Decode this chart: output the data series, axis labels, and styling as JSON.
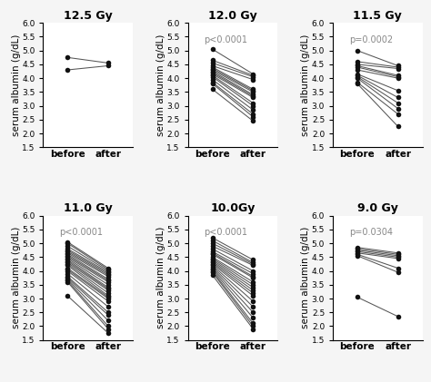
{
  "panels": [
    {
      "title": "12.5 Gy",
      "pvalue": null,
      "before": [
        4.75,
        4.3
      ],
      "after": [
        4.55,
        4.45
      ]
    },
    {
      "title": "12.0 Gy",
      "pvalue": "p<0.0001",
      "before": [
        5.05,
        4.65,
        4.55,
        4.45,
        4.4,
        4.35,
        4.3,
        4.25,
        4.2,
        4.15,
        4.1,
        4.05,
        3.95,
        3.85,
        3.8,
        3.6
      ],
      "after": [
        4.15,
        4.1,
        4.05,
        3.95,
        3.6,
        3.55,
        3.5,
        3.4,
        3.35,
        3.3,
        3.1,
        3.0,
        2.85,
        2.7,
        2.6,
        2.45
      ]
    },
    {
      "title": "11.5 Gy",
      "pvalue": "p=0.0002",
      "before": [
        5.0,
        4.6,
        4.5,
        4.45,
        4.4,
        4.3,
        4.15,
        4.1,
        4.05,
        4.0,
        3.85,
        3.8
      ],
      "after": [
        4.45,
        4.4,
        4.35,
        4.1,
        4.05,
        4.0,
        3.55,
        3.3,
        3.1,
        2.9,
        2.7,
        2.25
      ]
    },
    {
      "title": "11.0 Gy",
      "pvalue": "p<0.0001",
      "before": [
        5.05,
        5.0,
        4.9,
        4.8,
        4.75,
        4.7,
        4.65,
        4.6,
        4.55,
        4.5,
        4.45,
        4.4,
        4.35,
        4.3,
        4.25,
        4.2,
        4.1,
        4.05,
        4.0,
        3.9,
        3.8,
        3.75,
        3.7,
        3.65,
        3.6,
        3.1
      ],
      "after": [
        4.1,
        4.05,
        4.0,
        3.95,
        3.9,
        3.85,
        3.8,
        3.7,
        3.65,
        3.6,
        3.5,
        3.4,
        3.35,
        3.3,
        3.2,
        3.1,
        3.05,
        3.0,
        2.9,
        2.7,
        2.5,
        2.4,
        2.2,
        2.0,
        1.9,
        1.75
      ]
    },
    {
      "title": "10.0Gy",
      "pvalue": "p<0.0001",
      "before": [
        5.2,
        5.1,
        5.0,
        4.9,
        4.8,
        4.7,
        4.65,
        4.6,
        4.5,
        4.45,
        4.4,
        4.35,
        4.3,
        4.25,
        4.2,
        4.15,
        4.1,
        4.05,
        4.0,
        3.95,
        3.85
      ],
      "after": [
        4.4,
        4.3,
        4.25,
        4.2,
        4.0,
        3.9,
        3.8,
        3.75,
        3.6,
        3.5,
        3.4,
        3.3,
        3.2,
        3.1,
        2.9,
        2.7,
        2.5,
        2.3,
        2.1,
        2.0,
        1.9
      ]
    },
    {
      "title": "9.0 Gy",
      "pvalue": "p=0.0304",
      "before": [
        4.85,
        4.8,
        4.75,
        4.7,
        4.65,
        4.6,
        4.55,
        3.05
      ],
      "after": [
        4.65,
        4.6,
        4.55,
        4.5,
        4.45,
        4.1,
        3.95,
        2.35
      ]
    }
  ],
  "ylim": [
    1.5,
    6.0
  ],
  "yticks": [
    1.5,
    2.0,
    2.5,
    3.0,
    3.5,
    4.0,
    4.5,
    5.0,
    5.5,
    6.0
  ],
  "xlabel_before": "before",
  "xlabel_after": "after",
  "ylabel": "serum albumin (g/dL)",
  "dot_color": "#111111",
  "line_color": "#555555",
  "dot_size": 16,
  "line_width": 0.75,
  "title_fontsize": 9,
  "label_fontsize": 7.5,
  "tick_fontsize": 6.5,
  "pvalue_fontsize": 7,
  "pvalue_color": "#888888",
  "background_color": "#ffffff",
  "fig_background": "#f5f5f5"
}
